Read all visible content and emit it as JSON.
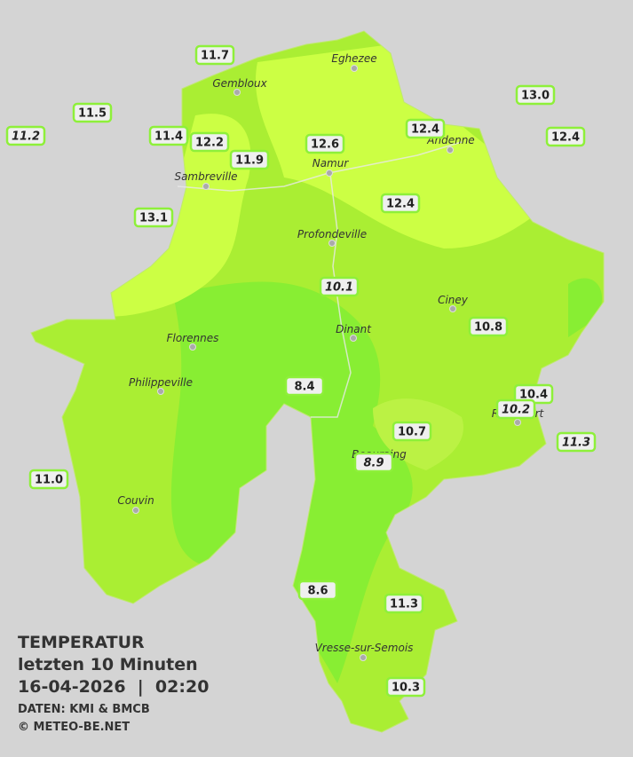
{
  "header": {
    "title": "TEMPERATUR",
    "subtitle": "letzten 10 Minuten",
    "timestamp": "16-04-2026  |  02:20",
    "credits": [
      "DATEN: KMI & BMCB",
      "© METEO-BE.NET"
    ]
  },
  "cities": [
    "Eghezee",
    "Gembloux",
    "Andenne",
    "Namur",
    "Sambreville",
    "Profondeville",
    "Ciney",
    "Dinant",
    "Florennes",
    "Philippeville",
    "Rochefort",
    "Beauraing",
    "Couvin",
    "Vresse-sur-Semois"
  ],
  "stations": [
    "11.7",
    "11.5",
    "11.2",
    "11.4",
    "12.2",
    "11.9",
    "12.6",
    "12.4",
    "13.0",
    "12.4",
    "12.4",
    "13.1",
    "10.1",
    "10.8",
    "8.4",
    "10.4",
    "10.2",
    "11.3",
    "10.7",
    "8.9",
    "11.0",
    "8.6",
    "11.3",
    "10.3"
  ]
}
